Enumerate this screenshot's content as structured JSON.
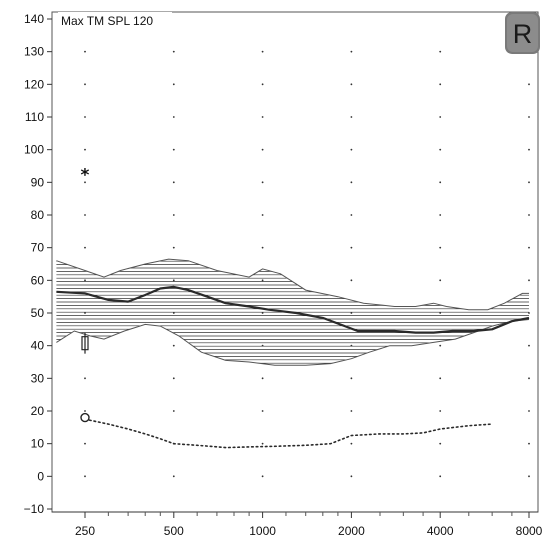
{
  "chart_data": {
    "type": "line",
    "title": "Max TM SPL 120",
    "ear_badge": "R",
    "xscale": "log",
    "xlim": [
      200,
      8000
    ],
    "ylim": [
      -10,
      140
    ],
    "x_ticks": [
      250,
      500,
      1000,
      2000,
      4000,
      8000
    ],
    "x_tick_labels": [
      "250",
      "500",
      "1000",
      "2000",
      "4000",
      "8000"
    ],
    "x_minor_ticks": [
      300,
      350,
      400,
      450,
      600,
      700,
      800,
      900,
      1200,
      1400,
      1600,
      1800,
      2500,
      3000,
      3500,
      5000,
      6000,
      7000
    ],
    "y_ticks": [
      140,
      130,
      120,
      110,
      100,
      90,
      80,
      70,
      60,
      50,
      40,
      30,
      20,
      10,
      0,
      -10
    ],
    "y_tick_labels": [
      "140",
      "130",
      "120",
      "110",
      "100",
      "90",
      "80",
      "70",
      "60",
      "50",
      "40",
      "30",
      "20",
      "10",
      "0",
      "−10"
    ],
    "grid": "dotted",
    "target_band": {
      "upper": {
        "x": [
          200,
          250,
          290,
          330,
          400,
          480,
          560,
          700,
          900,
          1000,
          1150,
          1400,
          1800,
          2200,
          2800,
          3300,
          3800,
          4200,
          5000,
          5800,
          6600,
          7600,
          8000
        ],
        "y": [
          66,
          63,
          61,
          63,
          65,
          66.5,
          66,
          63,
          61,
          63.5,
          62,
          57,
          55,
          53,
          52,
          52,
          53,
          52,
          51,
          51,
          53,
          56,
          56
        ]
      },
      "lower": {
        "x": [
          200,
          230,
          260,
          290,
          340,
          400,
          450,
          520,
          620,
          750,
          900,
          1100,
          1400,
          1700,
          2000,
          2300,
          2700,
          3200,
          3800,
          4500,
          5200,
          6000,
          7000,
          8000
        ],
        "y": [
          41,
          44.5,
          43,
          42,
          44.5,
          46.5,
          46,
          43,
          38,
          35.5,
          35,
          34,
          34,
          34.5,
          36,
          38,
          40,
          40,
          41,
          42,
          44,
          46,
          47.5,
          48
        ]
      }
    },
    "series": [
      {
        "style": "solid-thick",
        "x": [
          200,
          250,
          300,
          350,
          400,
          450,
          500,
          560,
          650,
          750,
          900,
          1050,
          1300,
          1600,
          1900,
          2100,
          2400,
          2800,
          3300,
          3800,
          4400,
          5200,
          6000,
          7000,
          8000
        ],
        "y": [
          56.5,
          56,
          54,
          53.5,
          55.5,
          57.5,
          58,
          57,
          55,
          53,
          52,
          51,
          50,
          48.5,
          46,
          44.5,
          44.5,
          44.5,
          44,
          44,
          44.5,
          44.5,
          45,
          47.5,
          48.5
        ]
      },
      {
        "style": "dotted",
        "x": [
          250,
          300,
          350,
          400,
          450,
          500,
          600,
          750,
          900,
          1100,
          1400,
          1700,
          2000,
          2500,
          3000,
          3500,
          4000,
          5000,
          6000
        ],
        "y": [
          17.5,
          16,
          14.5,
          13,
          11.5,
          10,
          9.5,
          8.8,
          9,
          9.2,
          9.5,
          10,
          12.5,
          13,
          13,
          13.3,
          14.5,
          15.5,
          16
        ]
      }
    ],
    "markers": [
      {
        "symbol": "*",
        "x": 250,
        "y": 93
      },
      {
        "symbol": "bracket",
        "x": 250,
        "y": 40
      },
      {
        "symbol": "circle",
        "x": 250,
        "y": 18
      }
    ]
  }
}
